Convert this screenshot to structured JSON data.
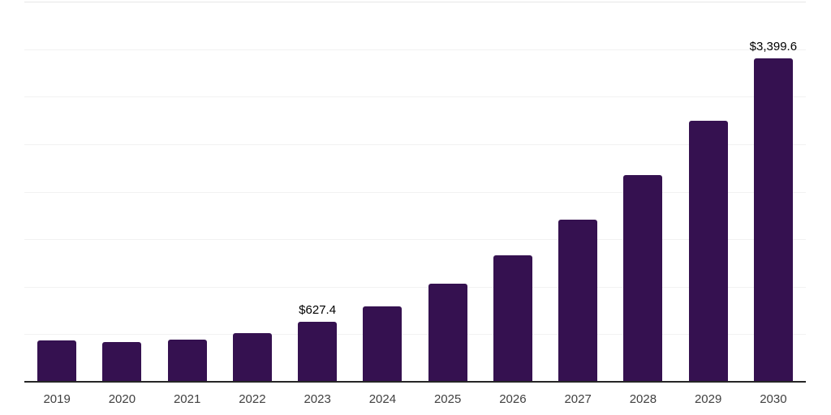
{
  "chart_data": {
    "type": "bar",
    "title": "",
    "xlabel": "",
    "ylabel": "",
    "categories": [
      "2019",
      "2020",
      "2021",
      "2022",
      "2023",
      "2024",
      "2025",
      "2026",
      "2027",
      "2028",
      "2029",
      "2030"
    ],
    "values": [
      436,
      414,
      442,
      513,
      627.4,
      792,
      1028,
      1327,
      1703,
      2171,
      2744,
      3399.6
    ],
    "data_labels": [
      "",
      "",
      "",
      "",
      "$627.4",
      "",
      "",
      "",
      "",
      "",
      "",
      "$3,399.6"
    ],
    "ylim": [
      0,
      4000
    ],
    "gridline_step": 500,
    "grid": true,
    "legend": "none",
    "bar_color": "#351150",
    "axis_line_color": "#262626",
    "gridline_color": "#f2f2f2",
    "top_gridline_color": "#e7e7e7",
    "tick_label_color": "#404040",
    "data_label_color": "#000000"
  }
}
